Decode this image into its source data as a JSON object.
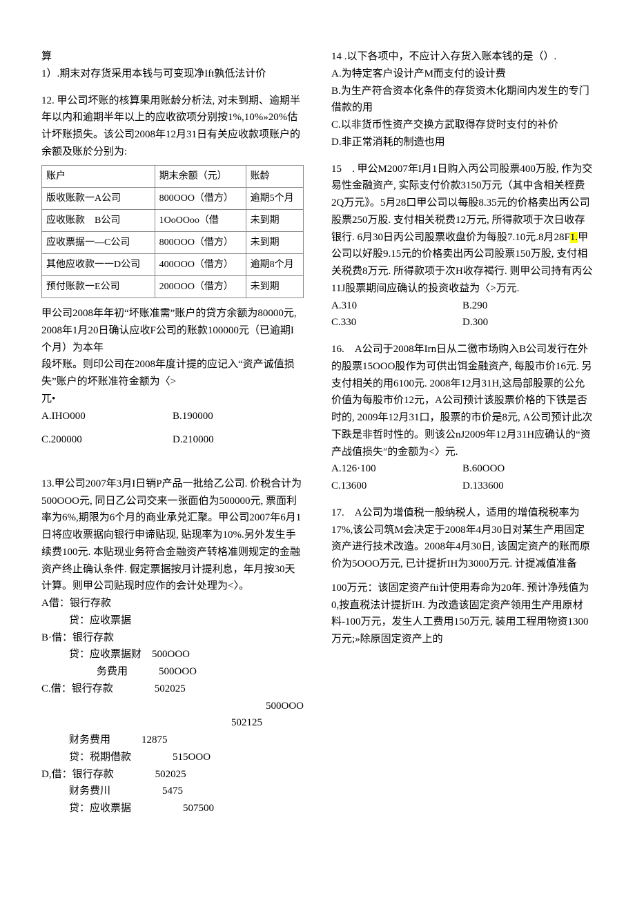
{
  "left": {
    "intro_suan": "算",
    "intro_line": "1）.期末对存货采用本钱与可变现净Ift孰低法计价",
    "q12": {
      "stem": "12. 甲公司坏账的核算果用账龄分析法, 对未到期、逾期半年以内和逾期半年以上的应收欲项分别按1%,10%»20%估计坏账损失。该公司2008年12月31日有关应收款项账户的余额及账於分别为:",
      "table": {
        "h1": "账户",
        "h2": "期末余额（元）",
        "h3": "账龄",
        "rows": [
          [
            "版收账款一A公司",
            "800OOO（借方）",
            "逾期5个月"
          ],
          [
            "应收账款　B公司",
            "1OoOOoo（借",
            "未到期"
          ],
          [
            "应收票据一—C公司",
            "800OOO（借方）",
            "未到期"
          ],
          [
            "其他应收款一一D公司",
            "400OOO（借方）",
            "逾期8个月"
          ],
          [
            "预付账款一E公司",
            "200OOO（借方）",
            "未到期"
          ]
        ]
      },
      "after1": "甲公司2008年年初“坏账准需”账户的贷方余额为80000元, 2008年1月20日确认应收F公司的账款100000元（已逾期I个月）为本年",
      "after2": "段坏账。则印公司在2008年度计提的应记入“资产诚值损失”账户的坏账准符金额为〈>",
      "after3": "兀•",
      "opts": {
        "a": "A.IHO000",
        "b": "B.190000",
        "c": "C.200000",
        "d": "D.210000"
      }
    },
    "q13": {
      "stem": "13.甲公司2007年3月I日销P产品一批给乙公司. 价税合计为500OOO元, 同日乙公司交来一张面伯为500000元, 票面利率为6%,期限为6个月的商业承兑汇聚。甲公司2007年6月1日将应收票据向银行申谛贴现, 贴现率为10%.另外发生手续费100元. 本贴现业务符合金融资产转格准则规定的金融资产终止确认条件. 假定票据按月计提利息，年月按30天计算。则甲公司贴现时应作的会计处理为<〉。",
      "a": {
        "l1": "A借：银行存款",
        "l2": "贷：应收票据"
      },
      "b": {
        "l1": "B·借：银行存款",
        "l2": "贷：应收票据财　500OOO",
        "l3": "务费用　　　500OOO"
      },
      "c": {
        "l1": "C.借：银行存款　　　　502025",
        "l2": "500OOO"
      }
    }
  },
  "right": {
    "topnums": {
      "l1": "502125",
      "l2a": "财务费用",
      "l2b": "12875",
      "l3a": "贷：税期借款",
      "l3b": "515OOO",
      "l4a": "D,借：银行存款",
      "l4b": "502025",
      "l5a": "财务费川",
      "l5b": "5475",
      "l6a": "贷：应收票据",
      "l6b": "507500"
    },
    "q14": {
      "stem": "14 .以下各项中，不应计入存货入账本钱的是（）.",
      "a": "A.为特定客户设计产M而支付的设计费",
      "b": "B.为生产符合资本化条件的存货资木化期间内发生的专门借款的用",
      "c": "C.以非货币性资产交换方武取得存贷时支付的补价",
      "d": "D.非正常消耗的制造也用"
    },
    "q15": {
      "p1": "15　. 甲公M2007年I月1日购入丙公司股票400万股, 作为交易性金融资产, 实际支付价款3150万元（其中含相关桎费2Q万元》。5月28口甲公司以每股8.35元的价格卖出丙公司股票250万股. 支付相关税费12万元, 所得款项于次日收存银行. 6月30日丙公司股票收盘价为每股7.10元.8月28F",
      "hl": "1.",
      "p2": "甲公司以好股9.15元的价格卖出丙公司股票150万股, 支付相关税费8万元. 所得款项于次H收存褐行. 则甲公司持有丙公11J股票期间应确认的投资收益为〈>万元.",
      "opts": {
        "a": "A.310",
        "b": "B.290",
        "c": "C.330",
        "d": "D.300"
      }
    },
    "q16": {
      "stem": "16.　A公司于2008年Irn日从二徼市场购入B公司发行在外的股票15OOO股作为可供出饵金融资产, 每股市价16元. 另支付相关的用6100元. 2008年12月31H,这局部股票的公允价值为每股市价12元，A公司预计该股票价格的下铁是否时的, 2009年12月31口，股票的市价是8元, A公司预计此次下跌是非哲时性的。则该公nJ2009年12月31H应确认的“资产战值损失″的金额为<〉元.",
      "opts": {
        "a": "A.126·100",
        "b": "B.60OOO",
        "c": "C.13600",
        "d": "D.133600"
      }
    },
    "q17": {
      "p1": "17.　A公司为增值税一般纳税人，适用的增值税税率为17%,该公司筑M会决定于2008年4月30日对某生产用固定资产进行技术改造。2008年4月30日, 该固定资产的账而原价为5OOO万元, 已计提折IH为3000万元. 计提减值准备",
      "p2": "100万元：该固定资产fii计使用寿命为20年. 预计净残值为0,按直税法计提折IH. 为改造该固定资产领用生产用原材料-100万元，发生人工费用150万元, 装用工程用物资1300万元;»除原固定资产上的"
    }
  }
}
